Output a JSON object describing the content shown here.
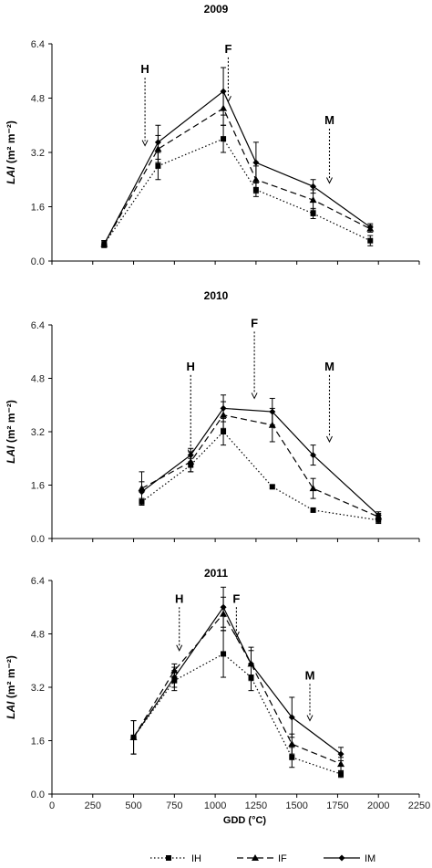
{
  "chart_data": [
    {
      "type": "line",
      "title": "2009",
      "ylabel_main": "LAI",
      "ylabel_unit": " (m² m⁻²)",
      "ylim": [
        0,
        6.4
      ],
      "yticks": [
        "0.0",
        "1.6",
        "3.2",
        "4.8",
        "6.4"
      ],
      "x": [
        320,
        650,
        1050,
        1250,
        1600,
        1950
      ],
      "series": [
        {
          "name": "IH",
          "values": [
            0.5,
            2.8,
            3.6,
            2.1,
            1.4,
            0.6
          ],
          "err": [
            0.1,
            0.4,
            0.4,
            0.2,
            0.15,
            0.15
          ]
        },
        {
          "name": "IF",
          "values": [
            0.5,
            3.3,
            4.5,
            2.4,
            1.8,
            0.95
          ],
          "err": [
            0.1,
            0.4,
            0.5,
            0.4,
            0.3,
            0.1
          ]
        },
        {
          "name": "IM",
          "values": [
            0.5,
            3.5,
            5.0,
            2.9,
            2.2,
            1.0
          ],
          "err": [
            0.1,
            0.5,
            0.7,
            0.6,
            0.2,
            0.1
          ]
        }
      ],
      "stages": [
        {
          "label": "H",
          "x": 570,
          "y_top": 5.4,
          "y_bottom": 3.4
        },
        {
          "label": "F",
          "x": 1080,
          "y_top": 6.0,
          "y_bottom": 4.7
        },
        {
          "label": "M",
          "x": 1700,
          "y_top": 3.9,
          "y_bottom": 2.3
        }
      ]
    },
    {
      "type": "line",
      "title": "2010",
      "ylabel_main": "LAI",
      "ylabel_unit": " (m² m⁻²)",
      "ylim": [
        0,
        6.4
      ],
      "yticks": [
        "0.0",
        "1.6",
        "3.2",
        "4.8",
        "6.4"
      ],
      "x": [
        550,
        850,
        1050,
        1350,
        1600,
        2000
      ],
      "series": [
        {
          "name": "IH",
          "values": [
            1.1,
            2.2,
            3.2,
            1.55,
            0.85,
            0.55
          ],
          "err": [
            0.1,
            0.2,
            0.4,
            0.05,
            0.05,
            0.1
          ]
        },
        {
          "name": "IF",
          "values": [
            1.5,
            2.3,
            3.7,
            3.4,
            1.5,
            0.65
          ],
          "err": [
            0.5,
            0.3,
            0.4,
            0.5,
            0.3,
            0.1
          ]
        },
        {
          "name": "IM",
          "values": [
            1.4,
            2.5,
            3.9,
            3.8,
            2.5,
            0.7
          ],
          "err": [
            0.3,
            0.2,
            0.4,
            0.4,
            0.3,
            0.1
          ]
        }
      ],
      "stages": [
        {
          "label": "H",
          "x": 850,
          "y_top": 4.9,
          "y_bottom": 2.5
        },
        {
          "label": "F",
          "x": 1240,
          "y_top": 6.2,
          "y_bottom": 4.2
        },
        {
          "label": "M",
          "x": 1700,
          "y_top": 4.9,
          "y_bottom": 2.9
        }
      ]
    },
    {
      "type": "line",
      "title": "2011",
      "ylabel_main": "LAI",
      "ylabel_unit": " (m² m⁻²)",
      "ylim": [
        0,
        6.4
      ],
      "yticks": [
        "0.0",
        "1.6",
        "3.2",
        "4.8",
        "6.4"
      ],
      "xlim": [
        0,
        2250
      ],
      "xticks": [
        "0",
        "250",
        "500",
        "750",
        "1000",
        "1250",
        "1500",
        "1750",
        "2000",
        "2250"
      ],
      "xlabel": "GDD (°C)",
      "x": [
        500,
        750,
        1050,
        1220,
        1470,
        1770
      ],
      "series": [
        {
          "name": "IH",
          "values": [
            1.7,
            3.4,
            4.2,
            3.5,
            1.1,
            0.6
          ],
          "err": [
            0.5,
            0.3,
            0.7,
            0.4,
            0.3,
            0.1
          ]
        },
        {
          "name": "IF",
          "values": [
            1.7,
            3.7,
            5.4,
            3.9,
            1.5,
            0.9
          ],
          "err": [
            0.5,
            0.2,
            0.5,
            0.4,
            0.3,
            0.2
          ]
        },
        {
          "name": "IM",
          "values": [
            1.7,
            3.5,
            5.6,
            3.9,
            2.3,
            1.2
          ],
          "err": [
            0.5,
            0.3,
            0.6,
            0.5,
            0.6,
            0.2
          ]
        }
      ],
      "stages": [
        {
          "label": "H",
          "x": 780,
          "y_top": 5.6,
          "y_bottom": 4.3
        },
        {
          "label": "F",
          "x": 1130,
          "y_top": 5.6,
          "y_bottom": 4.7
        },
        {
          "label": "M",
          "x": 1580,
          "y_top": 3.3,
          "y_bottom": 2.2
        }
      ]
    }
  ],
  "legend": [
    {
      "label": "IH",
      "style": "dotted",
      "marker": "square"
    },
    {
      "label": "IF",
      "style": "dashed",
      "marker": "triangle"
    },
    {
      "label": "IM",
      "style": "solid",
      "marker": "diamond"
    }
  ]
}
